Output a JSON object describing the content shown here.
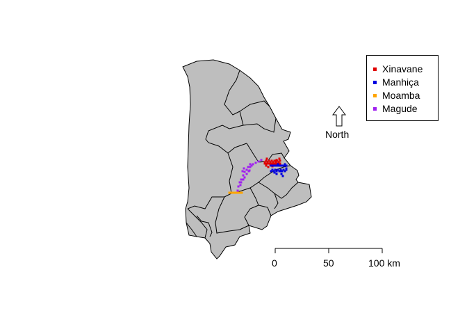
{
  "legend": {
    "items": [
      {
        "label": "Xinavane",
        "color": "#e00000"
      },
      {
        "label": "Manhiça",
        "color": "#0000e0"
      },
      {
        "label": "Moamba",
        "color": "#ffa500"
      },
      {
        "label": "Magude",
        "color": "#a020f0"
      }
    ]
  },
  "north_arrow": {
    "label": "North",
    "icon": "north-arrow-icon"
  },
  "scale_bar": {
    "ticks": [
      "0",
      "50",
      "100 km"
    ]
  },
  "map": {
    "region_fill": "#bebebe",
    "border_color": "#000000"
  }
}
